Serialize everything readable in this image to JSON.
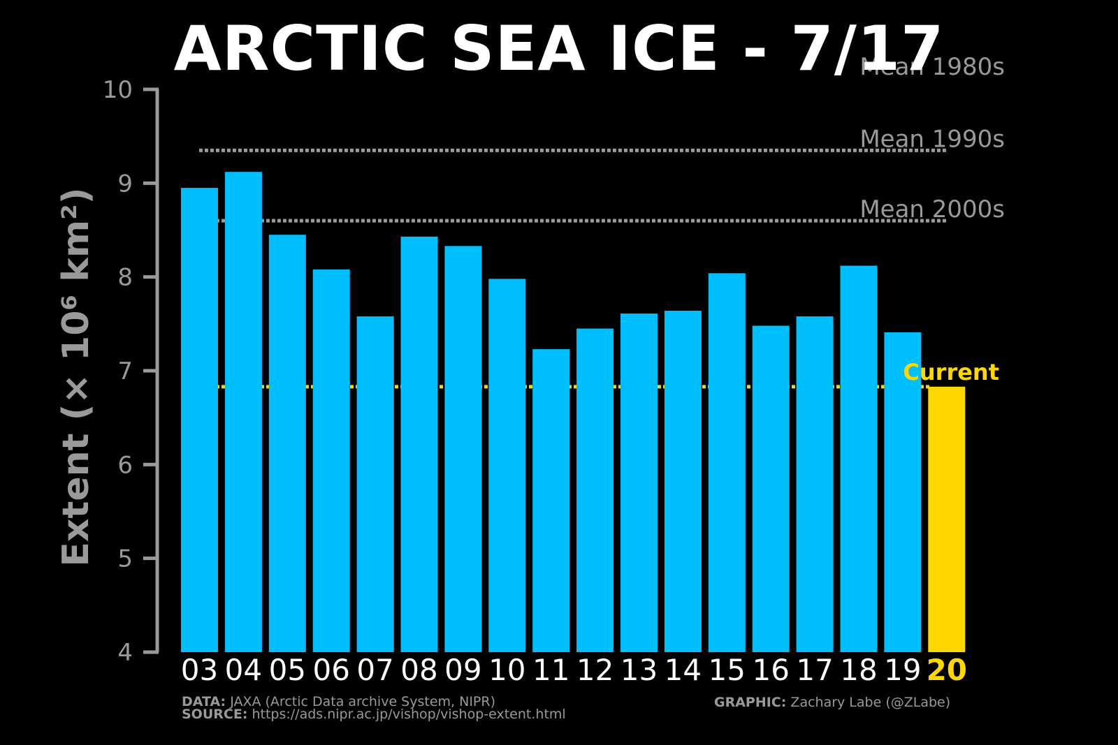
{
  "title": "ARCTIC SEA ICE - 7/17",
  "chart_data": {
    "type": "bar",
    "title": "ARCTIC SEA ICE - 7/17",
    "ylabel": "Extent (× 10⁶ km²)",
    "ylim": [
      4,
      10
    ],
    "yticks": [
      4,
      5,
      6,
      7,
      8,
      9,
      10
    ],
    "categories": [
      "03",
      "04",
      "05",
      "06",
      "07",
      "08",
      "09",
      "10",
      "11",
      "12",
      "13",
      "14",
      "15",
      "16",
      "17",
      "18",
      "19",
      "20"
    ],
    "values": [
      8.95,
      9.12,
      8.45,
      8.08,
      7.58,
      8.43,
      8.33,
      7.98,
      7.23,
      7.45,
      7.61,
      7.64,
      8.04,
      7.48,
      7.58,
      8.12,
      7.41,
      6.83
    ],
    "highlight_index": 17,
    "bar_color": "#00bfff",
    "highlight_color": "#ffd700",
    "reference_lines": [
      {
        "label": "Mean 1980s",
        "value": 10.12,
        "color": "#9a9a9a"
      },
      {
        "label": "Mean 1990s",
        "value": 9.35,
        "color": "#9a9a9a"
      },
      {
        "label": "Mean 2000s",
        "value": 8.6,
        "color": "#9a9a9a"
      },
      {
        "label": "Current",
        "value": 6.83,
        "color": "#ffd700"
      }
    ]
  },
  "footer": {
    "data_label": "DATA:",
    "data_text": "JAXA (Arctic Data archive System, NIPR)",
    "source_label": "SOURCE:",
    "source_text": "https://ads.nipr.ac.jp/vishop/vishop-extent.html",
    "graphic_label": "GRAPHIC:",
    "graphic_text": "Zachary Labe (@ZLabe)"
  }
}
